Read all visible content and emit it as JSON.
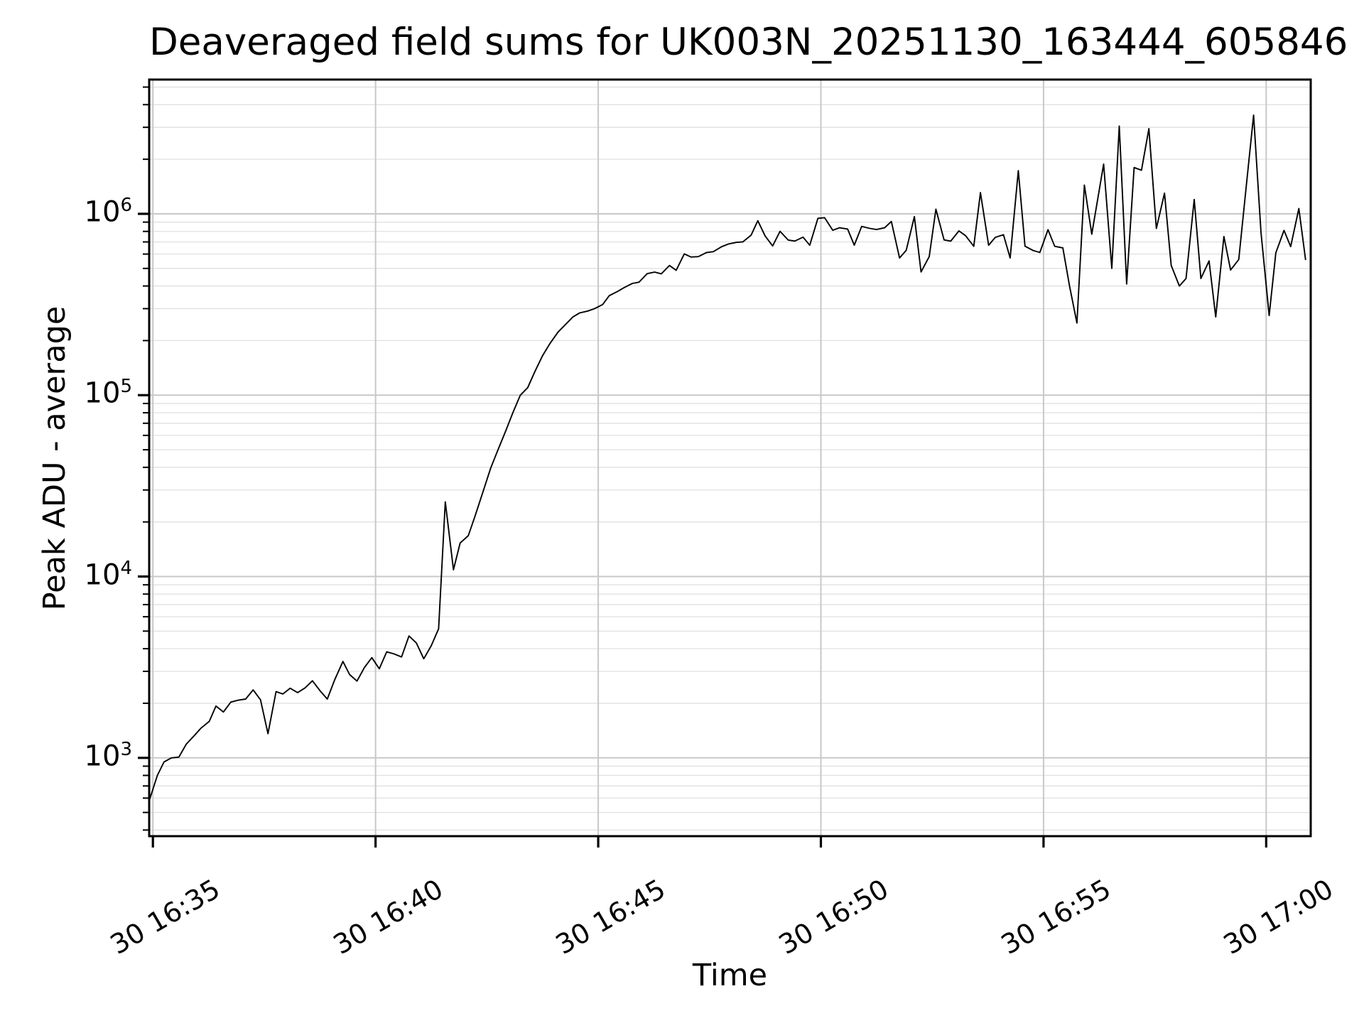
{
  "figure": {
    "title": "Deaveraged field sums for UK003N_20251130_163444_605846",
    "xlabel": "Time",
    "ylabel": "Peak ADU - average",
    "background_color": "#ffffff",
    "line_color": "#000000",
    "spine_color": "#000000",
    "grid_major_color": "#c8c8c8",
    "grid_minor_color": "#e0e0e0"
  },
  "chart_data": {
    "type": "line",
    "title": "Deaveraged field sums for UK003N_20251130_163444_605846",
    "xlabel": "Time",
    "ylabel": "Peak ADU - average",
    "y_scale": "log",
    "grid": "both",
    "legend": "none",
    "ylim": [
      370,
      5500000
    ],
    "xlim": [
      "16:34:55",
      "17:01:00"
    ],
    "x_ticks": [
      {
        "label": "30 16:35",
        "time": "16:35:00"
      },
      {
        "label": "30 16:40",
        "time": "16:40:00"
      },
      {
        "label": "30 16:45",
        "time": "16:45:00"
      },
      {
        "label": "30 16:50",
        "time": "16:50:00"
      },
      {
        "label": "30 16:55",
        "time": "16:55:00"
      },
      {
        "label": "30 17:00",
        "time": "17:00:00"
      }
    ],
    "y_ticks": [
      {
        "base": "10",
        "exp": "3",
        "value": 1000
      },
      {
        "base": "10",
        "exp": "4",
        "value": 10000
      },
      {
        "base": "10",
        "exp": "5",
        "value": 100000
      },
      {
        "base": "10",
        "exp": "6",
        "value": 1000000
      }
    ],
    "series_name": "Peak ADU - average",
    "points": [
      [
        "16:34:55",
        580
      ],
      [
        "16:35:06",
        800
      ],
      [
        "16:35:15",
        950
      ],
      [
        "16:35:25",
        1000
      ],
      [
        "16:35:35",
        1010
      ],
      [
        "16:35:45",
        1190
      ],
      [
        "16:35:56",
        1330
      ],
      [
        "16:36:05",
        1460
      ],
      [
        "16:36:16",
        1590
      ],
      [
        "16:36:25",
        1930
      ],
      [
        "16:36:35",
        1790
      ],
      [
        "16:36:45",
        2030
      ],
      [
        "16:36:55",
        2080
      ],
      [
        "16:37:05",
        2110
      ],
      [
        "16:37:15",
        2370
      ],
      [
        "16:37:25",
        2090
      ],
      [
        "16:37:35",
        1360
      ],
      [
        "16:37:46",
        2320
      ],
      [
        "16:37:55",
        2250
      ],
      [
        "16:38:05",
        2420
      ],
      [
        "16:38:15",
        2290
      ],
      [
        "16:38:25",
        2430
      ],
      [
        "16:38:35",
        2660
      ],
      [
        "16:38:45",
        2350
      ],
      [
        "16:38:55",
        2110
      ],
      [
        "16:39:05",
        2700
      ],
      [
        "16:39:16",
        3400
      ],
      [
        "16:39:25",
        2880
      ],
      [
        "16:39:35",
        2650
      ],
      [
        "16:39:45",
        3150
      ],
      [
        "16:39:55",
        3570
      ],
      [
        "16:40:05",
        3100
      ],
      [
        "16:40:15",
        3840
      ],
      [
        "16:40:25",
        3740
      ],
      [
        "16:40:35",
        3600
      ],
      [
        "16:40:45",
        4700
      ],
      [
        "16:40:55",
        4300
      ],
      [
        "16:41:05",
        3520
      ],
      [
        "16:41:15",
        4150
      ],
      [
        "16:41:25",
        5150
      ],
      [
        "16:41:34",
        25800
      ],
      [
        "16:41:45",
        10900
      ],
      [
        "16:41:54",
        15300
      ],
      [
        "16:42:05",
        16800
      ],
      [
        "16:42:14",
        21500
      ],
      [
        "16:42:25",
        29500
      ],
      [
        "16:42:35",
        39500
      ],
      [
        "16:42:45",
        50000
      ],
      [
        "16:42:55",
        63000
      ],
      [
        "16:43:05",
        80000
      ],
      [
        "16:43:15",
        100000
      ],
      [
        "16:43:25",
        110000
      ],
      [
        "16:43:35",
        136000
      ],
      [
        "16:43:45",
        165000
      ],
      [
        "16:43:55",
        193000
      ],
      [
        "16:44:06",
        223000
      ],
      [
        "16:44:15",
        243000
      ],
      [
        "16:44:26",
        270000
      ],
      [
        "16:44:35",
        284000
      ],
      [
        "16:44:46",
        291000
      ],
      [
        "16:44:55",
        300000
      ],
      [
        "16:45:06",
        316000
      ],
      [
        "16:45:15",
        354000
      ],
      [
        "16:45:26",
        373000
      ],
      [
        "16:45:35",
        392000
      ],
      [
        "16:45:46",
        413000
      ],
      [
        "16:45:55",
        420000
      ],
      [
        "16:46:06",
        468000
      ],
      [
        "16:46:16",
        477000
      ],
      [
        "16:46:25",
        467000
      ],
      [
        "16:46:36",
        519000
      ],
      [
        "16:46:45",
        488000
      ],
      [
        "16:46:56",
        601000
      ],
      [
        "16:47:05",
        578000
      ],
      [
        "16:47:15",
        581000
      ],
      [
        "16:47:26",
        612000
      ],
      [
        "16:47:35",
        618000
      ],
      [
        "16:47:46",
        658000
      ],
      [
        "16:47:55",
        681000
      ],
      [
        "16:48:06",
        696000
      ],
      [
        "16:48:15",
        701000
      ],
      [
        "16:48:26",
        763000
      ],
      [
        "16:48:35",
        916000
      ],
      [
        "16:48:45",
        754000
      ],
      [
        "16:48:55",
        665000
      ],
      [
        "16:49:05",
        801000
      ],
      [
        "16:49:16",
        717000
      ],
      [
        "16:49:25",
        708000
      ],
      [
        "16:49:36",
        744000
      ],
      [
        "16:49:45",
        671000
      ],
      [
        "16:49:56",
        945000
      ],
      [
        "16:50:05",
        952000
      ],
      [
        "16:50:16",
        812000
      ],
      [
        "16:50:25",
        838000
      ],
      [
        "16:50:36",
        824000
      ],
      [
        "16:50:45",
        672000
      ],
      [
        "16:50:55",
        852000
      ],
      [
        "16:51:06",
        831000
      ],
      [
        "16:51:15",
        819000
      ],
      [
        "16:51:26",
        838000
      ],
      [
        "16:51:35",
        908000
      ],
      [
        "16:51:46",
        571000
      ],
      [
        "16:51:55",
        629000
      ],
      [
        "16:52:06",
        965000
      ],
      [
        "16:52:15",
        478000
      ],
      [
        "16:52:26",
        581000
      ],
      [
        "16:52:35",
        1060000
      ],
      [
        "16:52:46",
        718000
      ],
      [
        "16:52:55",
        707000
      ],
      [
        "16:53:06",
        805000
      ],
      [
        "16:53:15",
        757000
      ],
      [
        "16:53:26",
        662000
      ],
      [
        "16:53:35",
        1310000
      ],
      [
        "16:53:46",
        671000
      ],
      [
        "16:53:55",
        742000
      ],
      [
        "16:54:06",
        767000
      ],
      [
        "16:54:15",
        571000
      ],
      [
        "16:54:26",
        1730000
      ],
      [
        "16:54:35",
        663000
      ],
      [
        "16:54:46",
        628000
      ],
      [
        "16:54:55",
        612000
      ],
      [
        "16:55:06",
        818000
      ],
      [
        "16:55:15",
        662000
      ],
      [
        "16:55:26",
        649000
      ],
      [
        "16:55:35",
        400000
      ],
      [
        "16:55:45",
        250000
      ],
      [
        "16:55:55",
        1440000
      ],
      [
        "16:56:05",
        772000
      ],
      [
        "16:56:21",
        1880000
      ],
      [
        "16:56:32",
        500000
      ],
      [
        "16:56:42",
        3050000
      ],
      [
        "16:56:52",
        410000
      ],
      [
        "16:57:02",
        1800000
      ],
      [
        "16:57:12",
        1740000
      ],
      [
        "16:57:22",
        2950000
      ],
      [
        "16:57:32",
        830000
      ],
      [
        "16:57:43",
        1300000
      ],
      [
        "16:57:52",
        520000
      ],
      [
        "16:58:03",
        400000
      ],
      [
        "16:58:12",
        440000
      ],
      [
        "16:58:23",
        1200000
      ],
      [
        "16:58:32",
        440000
      ],
      [
        "16:58:43",
        550000
      ],
      [
        "16:58:52",
        270000
      ],
      [
        "16:59:03",
        750000
      ],
      [
        "16:59:12",
        490000
      ],
      [
        "16:59:23",
        560000
      ],
      [
        "16:59:33",
        1400000
      ],
      [
        "16:59:43",
        3500000
      ],
      [
        "16:59:53",
        790000
      ],
      [
        "17:00:04",
        275000
      ],
      [
        "17:00:13",
        610000
      ],
      [
        "17:00:24",
        810000
      ],
      [
        "17:00:33",
        660000
      ],
      [
        "17:00:44",
        1070000
      ],
      [
        "17:00:53",
        560000
      ]
    ]
  }
}
